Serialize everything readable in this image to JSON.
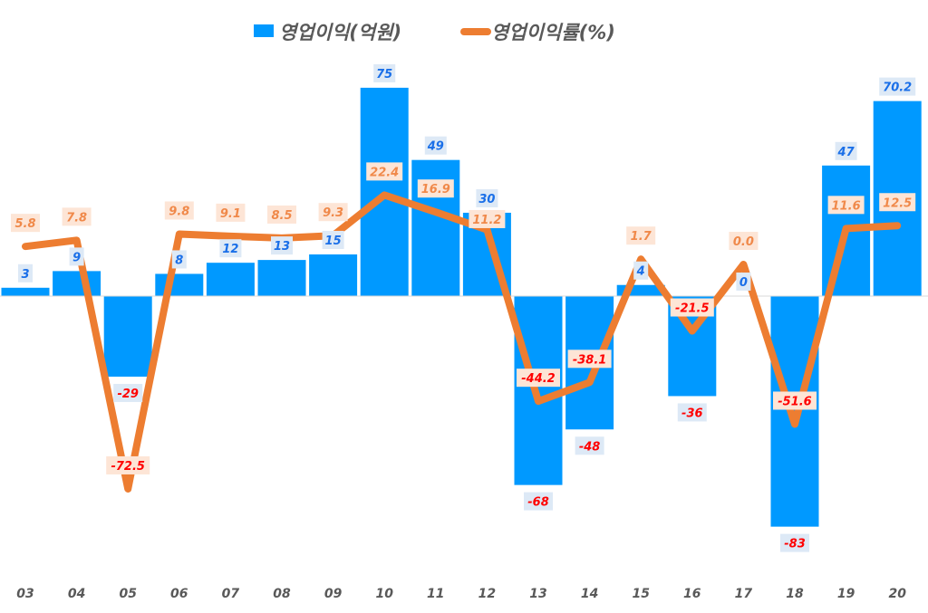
{
  "chart_data": {
    "type": "bar+line",
    "categories": [
      "03",
      "04",
      "05",
      "06",
      "07",
      "08",
      "09",
      "10",
      "11",
      "12",
      "13",
      "14",
      "15",
      "16",
      "17",
      "18",
      "19",
      "20"
    ],
    "series": [
      {
        "name": "영업이익(억원)",
        "type": "bar",
        "color": "#0099ff",
        "values": [
          3,
          9,
          -29,
          8,
          12,
          13,
          15,
          75,
          49,
          30,
          -68,
          -48,
          4,
          -36,
          0,
          -83,
          47,
          70.2
        ]
      },
      {
        "name": "영업이익률(%)",
        "type": "line",
        "color": "#ed7d31",
        "values": [
          5.8,
          7.8,
          -72.5,
          9.8,
          9.1,
          8.5,
          9.3,
          22.4,
          16.9,
          11.2,
          -44.2,
          -38.1,
          1.7,
          -21.5,
          0.0,
          -51.6,
          11.6,
          12.5
        ]
      }
    ],
    "bar_labels": [
      "3",
      "9",
      "-29",
      "8",
      "12",
      "13",
      "15",
      "75",
      "49",
      "30",
      "-68",
      "-48",
      "4",
      "-36",
      "0",
      "-83",
      "47",
      "70.2"
    ],
    "line_labels": [
      "5.8",
      "7.8",
      "-72.5",
      "9.8",
      "9.1",
      "8.5",
      "9.3",
      "22.4",
      "16.9",
      "11.2",
      "-44.2",
      "-38.1",
      "1.7",
      "-21.5",
      "0.0",
      "-51.6",
      "11.6",
      "12.5"
    ],
    "legend_placement": "top",
    "grid": false,
    "colors": {
      "positive_bar_label": "#1a6fe8",
      "positive_line_label": "#f0894a",
      "negative_label": "#ff0000",
      "bar_label_bg": "#dde9f6",
      "line_label_bg": "#fde5d6",
      "tick": "#595959"
    }
  }
}
